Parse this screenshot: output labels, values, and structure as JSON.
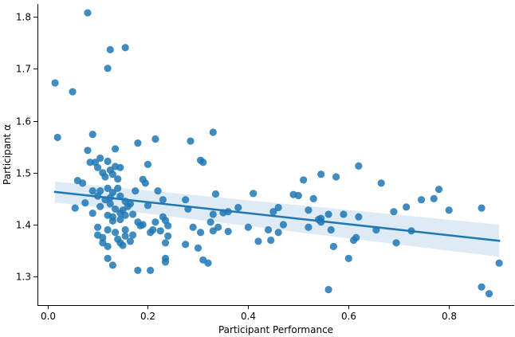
{
  "chart_data": {
    "type": "scatter",
    "title": "",
    "xlabel": "Participant Performance",
    "ylabel": "Participant α",
    "xlim": [
      -0.02,
      0.93
    ],
    "ylim": [
      1.245,
      1.825
    ],
    "xticks": [
      0.0,
      0.2,
      0.4,
      0.6,
      0.8
    ],
    "xtick_labels": [
      "0.0",
      "0.2",
      "0.4",
      "0.6",
      "0.8"
    ],
    "yticks": [
      1.3,
      1.4,
      1.5,
      1.6,
      1.7,
      1.8
    ],
    "ytick_labels": [
      "1.3",
      "1.4",
      "1.5",
      "1.6",
      "1.7",
      "1.8"
    ],
    "grid": false,
    "point_color": "#1f77b4",
    "line_color": "#1f77b4",
    "band_color": "#1f77b4",
    "points": [
      [
        0.08,
        1.808
      ],
      [
        0.125,
        1.737
      ],
      [
        0.155,
        1.741
      ],
      [
        0.12,
        1.701
      ],
      [
        0.015,
        1.673
      ],
      [
        0.05,
        1.656
      ],
      [
        0.02,
        1.568
      ],
      [
        0.09,
        1.574
      ],
      [
        0.08,
        1.543
      ],
      [
        0.135,
        1.546
      ],
      [
        0.18,
        1.557
      ],
      [
        0.215,
        1.565
      ],
      [
        0.285,
        1.561
      ],
      [
        0.33,
        1.578
      ],
      [
        0.095,
        1.52
      ],
      [
        0.105,
        1.528
      ],
      [
        0.12,
        1.522
      ],
      [
        0.125,
        1.505
      ],
      [
        0.135,
        1.512
      ],
      [
        0.145,
        1.51
      ],
      [
        0.2,
        1.516
      ],
      [
        0.305,
        1.524
      ],
      [
        0.31,
        1.52
      ],
      [
        0.085,
        1.52
      ],
      [
        0.1,
        1.51
      ],
      [
        0.11,
        1.5
      ],
      [
        0.115,
        1.492
      ],
      [
        0.13,
        1.497
      ],
      [
        0.14,
        1.488
      ],
      [
        0.19,
        1.487
      ],
      [
        0.195,
        1.48
      ],
      [
        0.06,
        1.485
      ],
      [
        0.07,
        1.48
      ],
      [
        0.09,
        1.465
      ],
      [
        0.105,
        1.465
      ],
      [
        0.12,
        1.47
      ],
      [
        0.13,
        1.462
      ],
      [
        0.14,
        1.47
      ],
      [
        0.175,
        1.465
      ],
      [
        0.22,
        1.465
      ],
      [
        0.1,
        1.455
      ],
      [
        0.115,
        1.448
      ],
      [
        0.125,
        1.452
      ],
      [
        0.145,
        1.455
      ],
      [
        0.155,
        1.445
      ],
      [
        0.165,
        1.44
      ],
      [
        0.23,
        1.448
      ],
      [
        0.275,
        1.448
      ],
      [
        0.335,
        1.459
      ],
      [
        0.055,
        1.432
      ],
      [
        0.075,
        1.442
      ],
      [
        0.105,
        1.435
      ],
      [
        0.125,
        1.44
      ],
      [
        0.135,
        1.43
      ],
      [
        0.15,
        1.428
      ],
      [
        0.16,
        1.435
      ],
      [
        0.2,
        1.437
      ],
      [
        0.28,
        1.43
      ],
      [
        0.35,
        1.423
      ],
      [
        0.09,
        1.422
      ],
      [
        0.12,
        1.418
      ],
      [
        0.13,
        1.415
      ],
      [
        0.145,
        1.422
      ],
      [
        0.155,
        1.418
      ],
      [
        0.17,
        1.42
      ],
      [
        0.23,
        1.415
      ],
      [
        0.33,
        1.42
      ],
      [
        0.36,
        1.425
      ],
      [
        0.13,
        1.407
      ],
      [
        0.145,
        1.41
      ],
      [
        0.18,
        1.405
      ],
      [
        0.19,
        1.4
      ],
      [
        0.215,
        1.405
      ],
      [
        0.235,
        1.408
      ],
      [
        0.325,
        1.405
      ],
      [
        0.34,
        1.395
      ],
      [
        0.1,
        1.395
      ],
      [
        0.12,
        1.39
      ],
      [
        0.135,
        1.385
      ],
      [
        0.155,
        1.39
      ],
      [
        0.185,
        1.398
      ],
      [
        0.21,
        1.39
      ],
      [
        0.24,
        1.398
      ],
      [
        0.29,
        1.395
      ],
      [
        0.305,
        1.385
      ],
      [
        0.36,
        1.387
      ],
      [
        0.1,
        1.38
      ],
      [
        0.11,
        1.375
      ],
      [
        0.14,
        1.372
      ],
      [
        0.155,
        1.378
      ],
      [
        0.17,
        1.38
      ],
      [
        0.205,
        1.385
      ],
      [
        0.225,
        1.388
      ],
      [
        0.24,
        1.378
      ],
      [
        0.33,
        1.388
      ],
      [
        0.11,
        1.365
      ],
      [
        0.12,
        1.358
      ],
      [
        0.145,
        1.365
      ],
      [
        0.15,
        1.36
      ],
      [
        0.165,
        1.368
      ],
      [
        0.235,
        1.365
      ],
      [
        0.275,
        1.362
      ],
      [
        0.3,
        1.355
      ],
      [
        0.12,
        1.335
      ],
      [
        0.13,
        1.322
      ],
      [
        0.235,
        1.335
      ],
      [
        0.235,
        1.328
      ],
      [
        0.31,
        1.332
      ],
      [
        0.32,
        1.326
      ],
      [
        0.18,
        1.312
      ],
      [
        0.205,
        1.312
      ],
      [
        0.38,
        1.433
      ],
      [
        0.41,
        1.46
      ],
      [
        0.42,
        1.368
      ],
      [
        0.44,
        1.39
      ],
      [
        0.445,
        1.37
      ],
      [
        0.45,
        1.425
      ],
      [
        0.46,
        1.433
      ],
      [
        0.47,
        1.4
      ],
      [
        0.49,
        1.458
      ],
      [
        0.5,
        1.456
      ],
      [
        0.51,
        1.486
      ],
      [
        0.52,
        1.428
      ],
      [
        0.52,
        1.395
      ],
      [
        0.54,
        1.41
      ],
      [
        0.545,
        1.405
      ],
      [
        0.545,
        1.497
      ],
      [
        0.56,
        1.42
      ],
      [
        0.565,
        1.39
      ],
      [
        0.57,
        1.358
      ],
      [
        0.575,
        1.492
      ],
      [
        0.59,
        1.42
      ],
      [
        0.61,
        1.37
      ],
      [
        0.615,
        1.375
      ],
      [
        0.62,
        1.513
      ],
      [
        0.62,
        1.415
      ],
      [
        0.655,
        1.39
      ],
      [
        0.665,
        1.48
      ],
      [
        0.69,
        1.425
      ],
      [
        0.695,
        1.365
      ],
      [
        0.715,
        1.434
      ],
      [
        0.725,
        1.388
      ],
      [
        0.745,
        1.448
      ],
      [
        0.77,
        1.45
      ],
      [
        0.78,
        1.468
      ],
      [
        0.8,
        1.428
      ],
      [
        0.865,
        1.432
      ],
      [
        0.865,
        1.28
      ],
      [
        0.88,
        1.267
      ],
      [
        0.9,
        1.326
      ],
      [
        0.56,
        1.275
      ],
      [
        0.6,
        1.335
      ],
      [
        0.53,
        1.45
      ],
      [
        0.545,
        1.412
      ],
      [
        0.46,
        1.385
      ],
      [
        0.4,
        1.395
      ]
    ],
    "regression": {
      "x_start": 0.015,
      "x_end": 0.9,
      "y_start": 1.463,
      "y_end": 1.369,
      "band_lower_start": 1.443,
      "band_upper_start": 1.483,
      "band_lower_end": 1.338,
      "band_upper_end": 1.4
    }
  }
}
